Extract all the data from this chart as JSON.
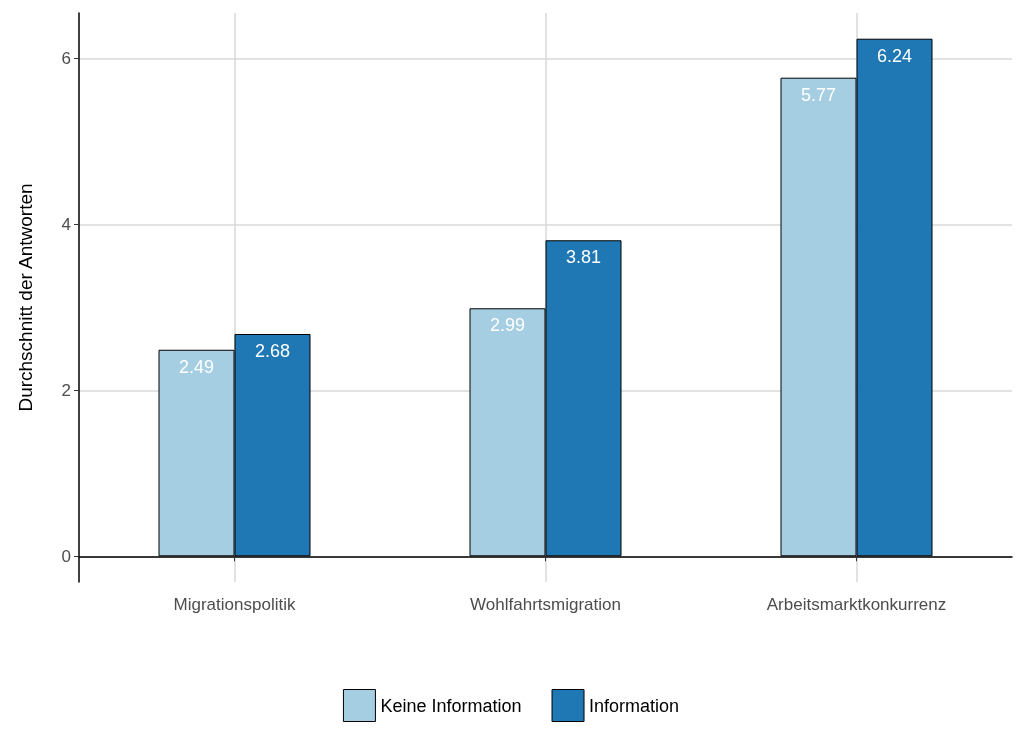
{
  "chart_data": {
    "type": "bar",
    "ylabel": "Durchschnitt der Antworten",
    "categories": [
      "Migrationspolitik",
      "Wohlfahrtsmigration",
      "Arbeitsmarktkonkurrenz"
    ],
    "series": [
      {
        "name": "Keine Information",
        "color": "#a6cee3",
        "values": [
          2.49,
          2.99,
          5.77
        ]
      },
      {
        "name": "Information",
        "color": "#1f78b4",
        "values": [
          2.68,
          3.81,
          6.24
        ]
      }
    ],
    "ylim": [
      -0.31,
      6.55
    ],
    "yticks": [
      0,
      2,
      4,
      6
    ],
    "grid": true,
    "legend": "bottom",
    "data_labels": true
  }
}
